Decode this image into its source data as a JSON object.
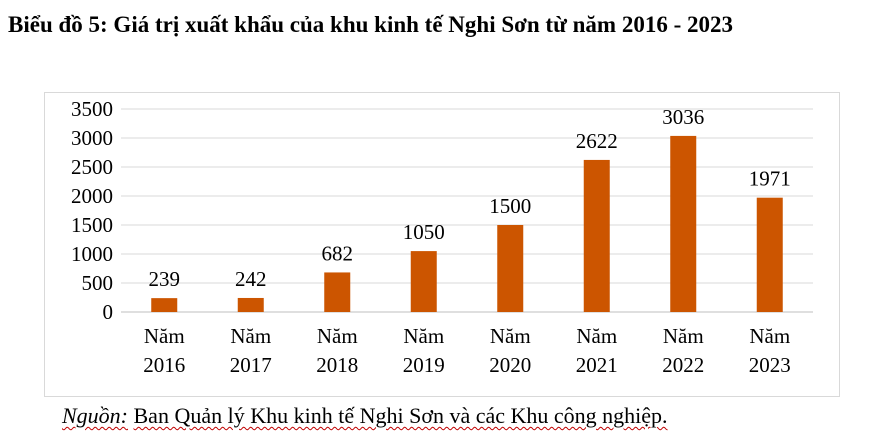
{
  "title": "Biểu đồ 5: Giá trị xuất khẩu của khu kinh tế Nghi Sơn từ năm 2016 - 2023",
  "source": {
    "label": "Nguồn:",
    "text": "Ban Quản lý Khu kinh tế Nghi Sơn và các Khu công nghiệp."
  },
  "colors": {
    "bar": "#cc5500",
    "grid": "#d9d9d9",
    "axis": "#bfbfbf"
  },
  "chart_data": {
    "type": "bar",
    "categories": [
      [
        "Năm",
        "2016"
      ],
      [
        "Năm",
        "2017"
      ],
      [
        "Năm",
        "2018"
      ],
      [
        "Năm",
        "2019"
      ],
      [
        "Năm",
        "2020"
      ],
      [
        "Năm",
        "2021"
      ],
      [
        "Năm",
        "2022"
      ],
      [
        "Năm",
        "2023"
      ]
    ],
    "values": [
      239,
      242,
      682,
      1050,
      1500,
      2622,
      3036,
      1971
    ],
    "yticks": [
      0,
      500,
      1000,
      1500,
      2000,
      2500,
      3000,
      3500
    ],
    "ylim": [
      0,
      3500
    ],
    "grid": true,
    "legend": "none"
  }
}
